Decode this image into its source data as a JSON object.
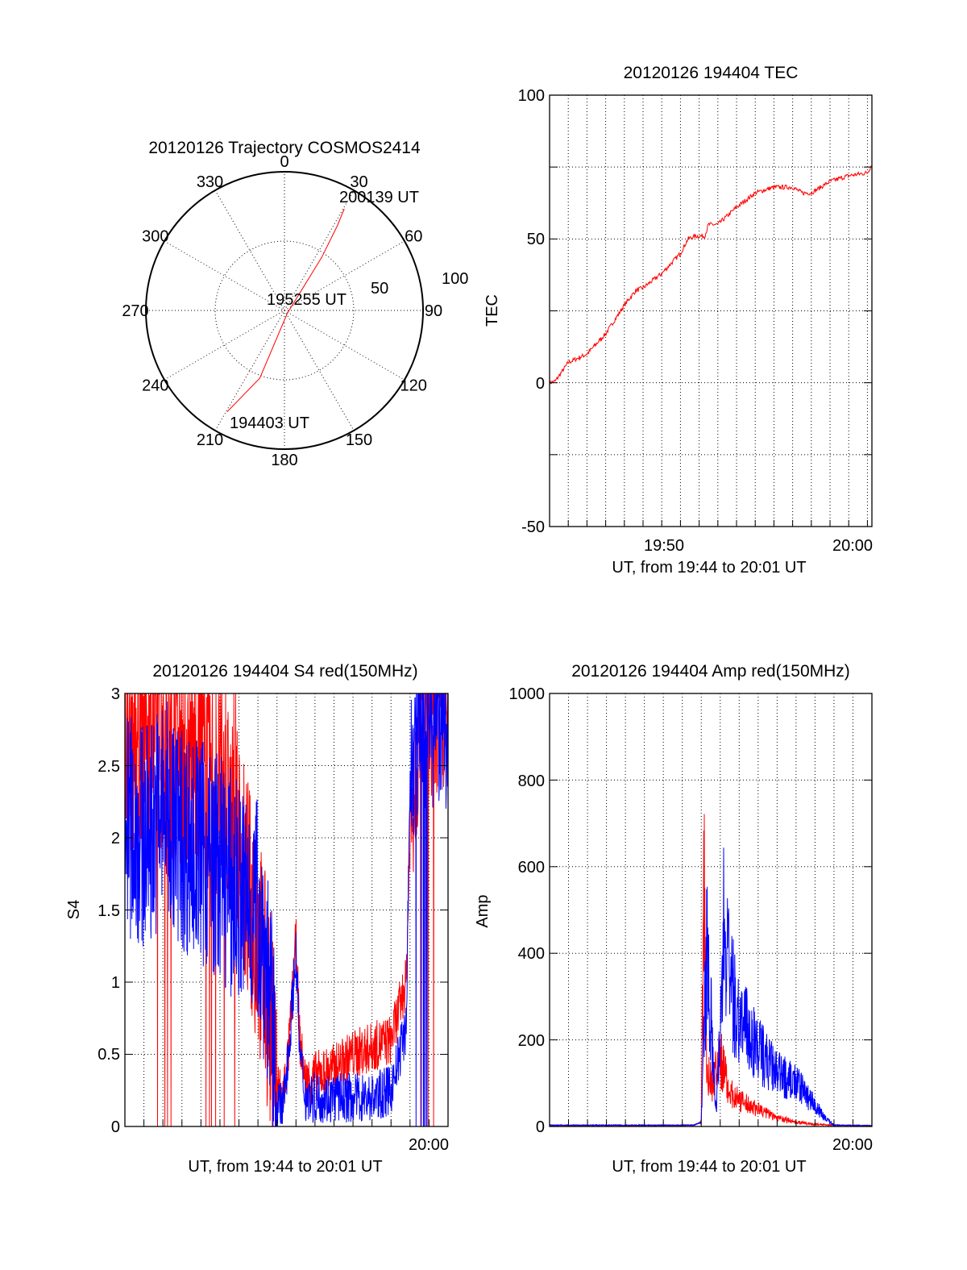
{
  "colors": {
    "red": "#ff0000",
    "blue": "#0000ff"
  },
  "chart_data": [
    {
      "id": "trajectory",
      "type": "polar",
      "title": "20120126 Trajectory COSMOS2414",
      "angle_labels": [
        "0",
        "30",
        "60",
        "90",
        "120",
        "150",
        "180",
        "210",
        "240",
        "270",
        "300",
        "330"
      ],
      "radius_labels": [
        "50",
        "100"
      ],
      "r_max": 100,
      "start_label": "194403 UT",
      "mid_label": "195255 UT",
      "end_label": "200139 UT",
      "series": [
        {
          "color": "red",
          "points": [
            [
              209.5,
              84
            ],
            [
              200,
              52
            ],
            [
              140,
              3
            ],
            [
              35,
              47
            ],
            [
              32,
              72
            ],
            [
              30.5,
              85
            ]
          ]
        }
      ]
    },
    {
      "id": "tec",
      "type": "line",
      "title": "20120126 194404 TEC",
      "xlabel": "UT, from 19:44 to 20:01 UT",
      "ylabel": "TEC",
      "ylim": [
        -50,
        100
      ],
      "yticks": [
        "100",
        "50",
        "0",
        "-50"
      ],
      "xticks": [
        "19:50",
        "20:00"
      ],
      "series": [
        {
          "color": "red",
          "x": [
            0,
            0.3,
            1,
            2,
            3,
            3.8,
            4,
            4.6,
            5,
            6,
            7,
            7.4,
            7.8,
            8.3,
            8.5,
            9,
            10,
            11,
            12,
            13,
            13.5,
            14,
            14.5,
            15,
            16,
            17,
            17.24
          ],
          "y": [
            0,
            0.5,
            7,
            10,
            17,
            25,
            27,
            32,
            33,
            38,
            45,
            50,
            51,
            51,
            55,
            55,
            61,
            66,
            68,
            68,
            66,
            66,
            68,
            70,
            72,
            73,
            76
          ]
        }
      ]
    },
    {
      "id": "s4",
      "type": "line",
      "title": "20120126 194404 S4 red(150MHz)",
      "xlabel": "UT, from 19:44 to 20:01 UT",
      "ylabel": "S4",
      "ylim": [
        0,
        3
      ],
      "yticks": [
        "3",
        "2.5",
        "2",
        "1.5",
        "1",
        "0.5",
        "0"
      ],
      "xticks": [
        "20:00"
      ],
      "series": [
        {
          "color": "red",
          "x": [
            0,
            1,
            2,
            3,
            4,
            5,
            6,
            7,
            7.5,
            8,
            8.3,
            8.6,
            9,
            9.2,
            9.5,
            10,
            11,
            12,
            13,
            14,
            14.8,
            15,
            15.5,
            16,
            17
          ],
          "y": [
            2.6,
            2.8,
            2.7,
            2.6,
            2.5,
            2.3,
            1.9,
            1.3,
            0.9,
            0.3,
            0.2,
            0.5,
            1.3,
            0.6,
            0.3,
            0.35,
            0.4,
            0.5,
            0.55,
            0.6,
            1.0,
            2.0,
            2.8,
            2.9,
            2.8
          ]
        },
        {
          "color": "blue",
          "x": [
            0,
            1,
            2,
            3,
            4,
            5,
            6,
            7,
            7.5,
            8,
            8.3,
            8.6,
            9,
            9.2,
            9.5,
            10,
            11,
            12,
            13,
            14,
            14.8,
            15,
            15.5,
            16,
            17
          ],
          "y": [
            2.1,
            2.0,
            2.2,
            2.0,
            1.9,
            1.8,
            1.6,
            1.5,
            1.1,
            0.15,
            0.12,
            0.5,
            1.2,
            0.5,
            0.2,
            0.2,
            0.2,
            0.2,
            0.2,
            0.25,
            0.7,
            2.4,
            2.8,
            2.8,
            2.8
          ]
        }
      ]
    },
    {
      "id": "amp",
      "type": "line",
      "title": "20120126 194404 Amp red(150MHz)",
      "xlabel": "UT, from 19:44 to 20:01 UT",
      "ylabel": "Amp",
      "ylim": [
        0,
        1000
      ],
      "yticks": [
        "1000",
        "800",
        "600",
        "400",
        "200",
        "0"
      ],
      "xticks": [
        "20:00"
      ],
      "series": [
        {
          "color": "red",
          "x": [
            0,
            7.6,
            8.0,
            8.15,
            8.3,
            8.6,
            9,
            9.5,
            10,
            11,
            12,
            13,
            14,
            15,
            17
          ],
          "y": [
            2,
            3,
            10,
            650,
            120,
            100,
            160,
            80,
            60,
            40,
            20,
            10,
            5,
            3,
            2
          ]
        },
        {
          "color": "blue",
          "x": [
            0,
            7.6,
            8.0,
            8.3,
            8.8,
            9.2,
            9.5,
            10,
            11,
            12,
            13,
            13.8,
            14.5,
            15,
            17
          ],
          "y": [
            3,
            3,
            10,
            420,
            30,
            480,
            330,
            250,
            180,
            120,
            100,
            60,
            20,
            3,
            2
          ]
        }
      ]
    }
  ]
}
